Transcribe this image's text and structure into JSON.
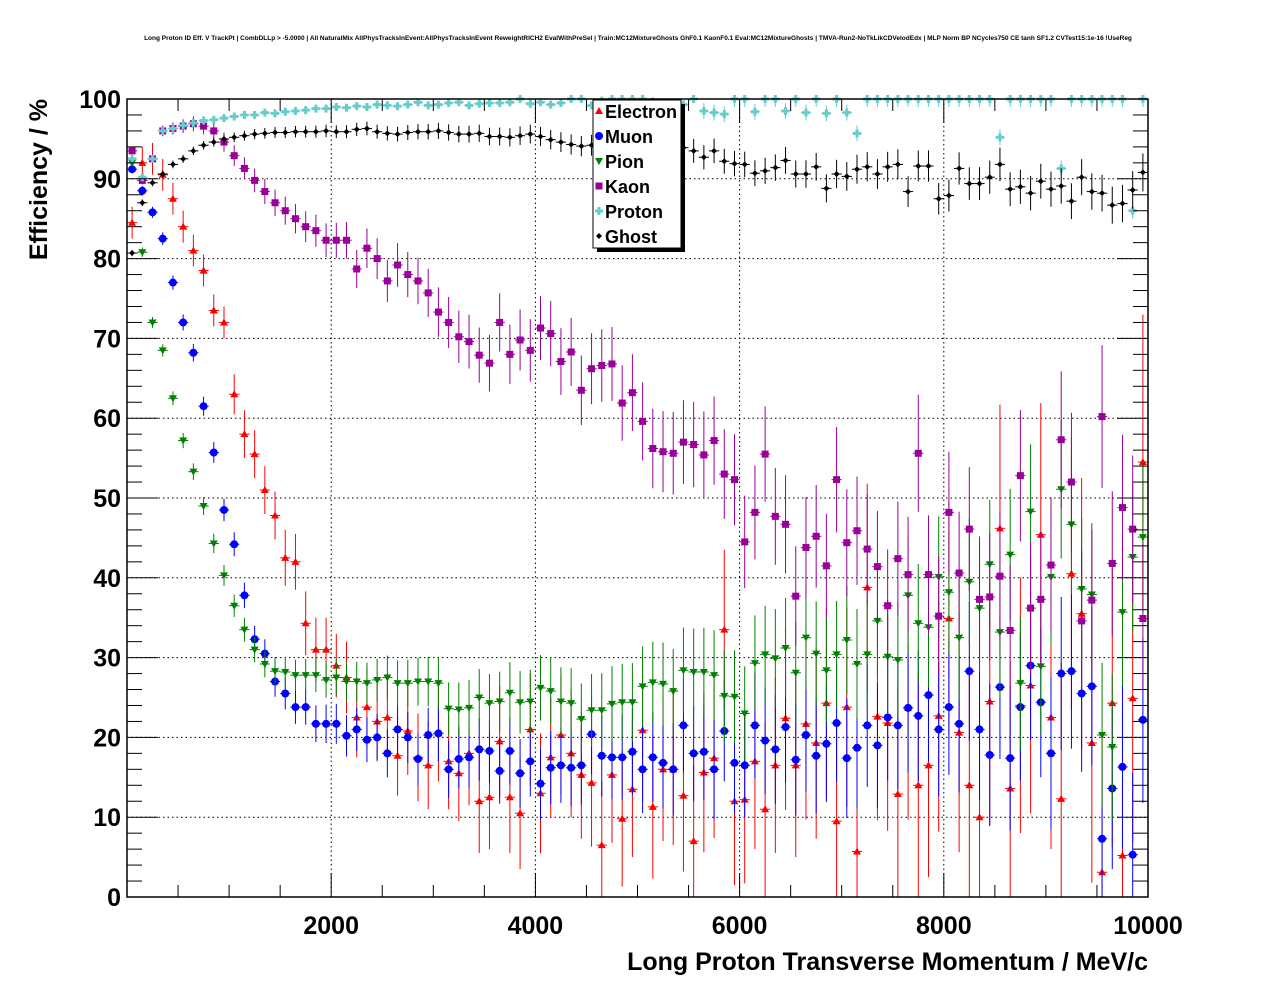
{
  "chart_data": {
    "type": "scatter",
    "title": "Long Proton ID Eff. V TrackPt | CombDLLp > -5.0000 | All NaturalMix AllPhysTracksInEvent:AllPhysTracksInEvent ReweightRICH2 EvalWithPreSel | Train:MC12MixtureGhosts GhF0.1 KaonF0.1 Eval:MC12MixtureGhosts | TMVA-Run2-NoTkLikCDVelodEdx | MLP Norm BP NCycles750 CE tanh SF1.2 CVTest15:1e-16 !UseReg",
    "xlabel": "Long Proton Transverse Momentum / MeV/c",
    "ylabel": "Efficiency / %",
    "xlim": [
      0,
      10000
    ],
    "ylim": [
      0,
      100
    ],
    "x_ticks": [
      "2000",
      "4000",
      "6000",
      "8000",
      "10000"
    ],
    "y_ticks": [
      "0",
      "10",
      "20",
      "30",
      "40",
      "50",
      "60",
      "70",
      "80",
      "90",
      "100"
    ],
    "grid": true,
    "legend_position": "top-center",
    "bin_width": 100,
    "series": [
      {
        "name": "Electron",
        "color": "#ff0000",
        "marker": "triangle-up",
        "values": [
          84.5,
          92,
          92.5,
          90.5,
          87.5,
          84,
          81,
          78.5,
          73.5,
          72,
          63,
          58,
          55.5,
          51,
          47.8,
          42.5,
          42,
          34.3,
          31,
          31,
          29,
          27.5,
          22.5,
          23.8,
          22,
          22.5,
          17.7,
          20.8,
          17.5,
          16.5,
          20.5,
          17,
          15.5,
          18,
          12,
          12.5,
          19.5,
          12.5,
          10.5,
          21,
          13,
          17.5,
          20.3,
          18,
          15.3,
          14.3,
          6.5,
          15.3,
          9.8,
          13.5,
          20.9,
          11.3,
          16,
          16,
          12.7,
          7,
          15.6,
          17.4,
          33.5,
          12,
          12.2,
          17,
          11,
          16.5,
          22.4,
          16.5,
          21.7,
          19.3,
          24.3,
          9.5,
          23.8,
          5.7,
          38.8,
          22.6,
          21.8,
          12.9,
          23.7,
          14,
          16.5,
          22.7,
          34.9,
          20.6,
          14,
          10,
          24.5,
          46.2,
          13.6,
          24,
          26.5,
          45.4,
          22.5,
          12.3,
          40.5,
          35.5,
          19.3,
          3.1,
          24.3,
          5.2,
          24.9,
          54.5
        ],
        "errors": [
          2,
          2,
          2,
          2,
          2,
          2,
          2,
          2,
          2,
          2,
          2.5,
          3,
          3,
          3,
          3,
          3.5,
          3.5,
          4,
          4,
          4,
          4,
          4.5,
          5,
          5,
          5,
          5,
          5,
          5.5,
          5.5,
          5.5,
          6,
          6,
          6,
          6.5,
          6.5,
          6.5,
          7,
          7,
          7,
          7,
          7.5,
          7.5,
          7.5,
          8,
          8,
          8,
          8,
          8.5,
          8.5,
          8.5,
          9,
          9,
          9,
          9.5,
          9.5,
          9.5,
          10,
          10,
          10,
          10.5,
          10.5,
          11,
          11,
          11,
          11.5,
          11.5,
          12,
          12,
          12,
          12.5,
          12.5,
          13,
          13,
          13,
          13.5,
          13.5,
          14,
          14,
          14,
          14.5,
          14.5,
          15,
          15,
          15,
          15.5,
          15.5,
          16,
          16,
          16,
          16.5,
          16.5,
          17,
          17,
          17,
          17.5,
          17.5,
          18,
          18,
          18,
          18.5
        ]
      },
      {
        "name": "Muon",
        "color": "#0000ff",
        "marker": "circle",
        "values": [
          91.2,
          88.5,
          85.8,
          82.5,
          77,
          72,
          68.2,
          61.5,
          55.7,
          48.5,
          44.2,
          37.8,
          32.3,
          30.5,
          27,
          25.5,
          23.8,
          23.8,
          21.7,
          21.7,
          21.7,
          20.2,
          21,
          19.7,
          20,
          18,
          21,
          20,
          17.3,
          20.3,
          20.5,
          16,
          17.3,
          17.5,
          18.5,
          18.3,
          15.8,
          18.3,
          15.5,
          17,
          14.2,
          16.2,
          16.5,
          16.2,
          16.5,
          20.4,
          17.7,
          17.5,
          17.5,
          18.2,
          16,
          17.5,
          16.8,
          16,
          21.5,
          18,
          18.2,
          16,
          20.8,
          16.8,
          16.5,
          21.5,
          19.6,
          18.5,
          21.3,
          17.2,
          20.3,
          17.7,
          19.2,
          21.8,
          17.4,
          18.7,
          21.5,
          19,
          22.5,
          21.5,
          23.7,
          22.7,
          25.3,
          21,
          23.8,
          21.7,
          28.3,
          21,
          17.8,
          26.3,
          17.4,
          23.8,
          29,
          24.4,
          18,
          28,
          28.3,
          25.5,
          26.4,
          7.3,
          13.6,
          16.3,
          5.3,
          22.2
        ]
      },
      {
        "name": "Pion",
        "color": "#008000",
        "marker": "triangle-down",
        "values": [
          92,
          80.8,
          72,
          68.5,
          62.5,
          57.2,
          53.3,
          49,
          44.3,
          40.3,
          36.5,
          33.5,
          31,
          29.2,
          28.3,
          28.2,
          27.8,
          27.8,
          27.8,
          27.2,
          27.5,
          27,
          27,
          26.8,
          27.2,
          27.5,
          26.8,
          26.8,
          27,
          27,
          26.8,
          23.6,
          23.5,
          23.7,
          25,
          24.3,
          24.5,
          25.6,
          24.4,
          24.5,
          26.2,
          25.8,
          24.5,
          24.3,
          22.3,
          23.4,
          23.4,
          24.2,
          24.4,
          24.4,
          26.4,
          26.9,
          26.7,
          25.8,
          28.4,
          28.2,
          28.2,
          27.8,
          25.2,
          25.1,
          23,
          29.3,
          30.4,
          29.9,
          31.2,
          28.1,
          32.5,
          30.5,
          28.4,
          30.4,
          32.2,
          29.2,
          30.4,
          34.6,
          30.1,
          29.7,
          37.8,
          34.3,
          33.8,
          40.1,
          38.2,
          32.5,
          39.5,
          36.2,
          41.7,
          33.2,
          42.9,
          26.8,
          48.3,
          28.9,
          40.1,
          51.1,
          46.7,
          38.6,
          37.9,
          20.3,
          18.8,
          35.7,
          42.6,
          45.1
        ]
      },
      {
        "name": "Kaon",
        "color": "#990099",
        "marker": "square",
        "values": [
          93.5,
          89.8,
          92.5,
          96,
          96.3,
          96.6,
          96.9,
          96.6,
          96,
          94.6,
          92.9,
          91.3,
          89.8,
          88.4,
          87,
          86,
          85,
          84,
          83.5,
          82.3,
          82.3,
          82.3,
          78.7,
          81.3,
          80,
          77.2,
          79.2,
          78,
          77.2,
          75.7,
          73.3,
          72,
          70.2,
          69.6,
          67.9,
          66.9,
          72,
          68,
          69.8,
          68.5,
          71.3,
          70.6,
          67.1,
          68.3,
          63.5,
          66.2,
          66.6,
          66.8,
          61.9,
          63.2,
          59.6,
          56.2,
          55.8,
          55.6,
          57,
          56.7,
          55.4,
          57.2,
          53,
          52.3,
          44.5,
          48.2,
          55.5,
          47.7,
          46.7,
          37.7,
          43.8,
          45.2,
          41.5,
          52.3,
          44.4,
          45.9,
          43.6,
          41.4,
          36.5,
          42.4,
          40.4,
          55.6,
          40.4,
          35.2,
          48.2,
          40.6,
          46.1,
          37.3,
          37.6,
          40.2,
          33.4,
          52.8,
          36.2,
          37.3,
          41.6,
          57.3,
          52,
          34.6,
          37.2,
          60.2,
          41.8,
          48.8,
          46.1,
          34.9
        ]
      },
      {
        "name": "Proton",
        "color": "#66cccc",
        "marker": "cross",
        "values": [
          92.5,
          90.2,
          92.5,
          96,
          96.3,
          96.7,
          97,
          97.3,
          97.4,
          97.6,
          97.8,
          98,
          98,
          98.3,
          98.2,
          98.4,
          98.5,
          98.6,
          98.8,
          98.8,
          99,
          98.9,
          99.1,
          99,
          99.3,
          99.2,
          99.1,
          99.3,
          99.6,
          99.2,
          99.3,
          99.5,
          99.6,
          99.2,
          99.4,
          99.5,
          99.5,
          99.6,
          100,
          99.4,
          99.6,
          99.3,
          99.5,
          100,
          100,
          99.2,
          99.8,
          100,
          100,
          100,
          100,
          99.7,
          99.5,
          99.4,
          99.3,
          100,
          98.5,
          98.3,
          98.1,
          100,
          100,
          98.4,
          100,
          100,
          98.5,
          100,
          98.3,
          100,
          98.2,
          100,
          98.3,
          95.7,
          100,
          100,
          100,
          100,
          100,
          100,
          100,
          100,
          100,
          100,
          100,
          100,
          100,
          95.2,
          100,
          100,
          100,
          100,
          100,
          91.3,
          100,
          100,
          100,
          100,
          100,
          100,
          86,
          100
        ]
      },
      {
        "name": "Ghost",
        "color": "#000000",
        "marker": "diamond",
        "values": [
          80.7,
          87,
          89.5,
          90.6,
          91.8,
          92.5,
          93.5,
          94.2,
          94.6,
          95,
          95.2,
          95.4,
          95.6,
          95.7,
          95.8,
          95.8,
          95.9,
          95.9,
          95.9,
          96,
          95.9,
          95.9,
          96.2,
          96.3,
          95.9,
          95.7,
          95.6,
          95.8,
          95.9,
          95.9,
          96,
          95.8,
          95.6,
          95.6,
          95.7,
          95.3,
          95.3,
          95.2,
          95.4,
          95.6,
          95.3,
          94.9,
          94.6,
          94.3,
          94.1,
          94.2,
          94.2,
          93.9,
          93.3,
          92.9,
          94,
          93.4,
          93.5,
          93.2,
          93.9,
          93.5,
          92.7,
          93.5,
          92.2,
          91.9,
          91.8,
          90.7,
          91,
          91.4,
          92.3,
          90.6,
          90.6,
          91.5,
          88.8,
          90.6,
          90.3,
          91.2,
          91.5,
          90.6,
          91.5,
          91.8,
          88.4,
          91.6,
          91.6,
          87.5,
          87.9,
          91.3,
          89.4,
          89.4,
          90.2,
          91.8,
          88.7,
          89,
          88.2,
          89.7,
          88.7,
          89.1,
          87.2,
          90.2,
          88.4,
          88.2,
          86.7,
          86.9,
          88.6,
          90.8
        ]
      }
    ]
  }
}
